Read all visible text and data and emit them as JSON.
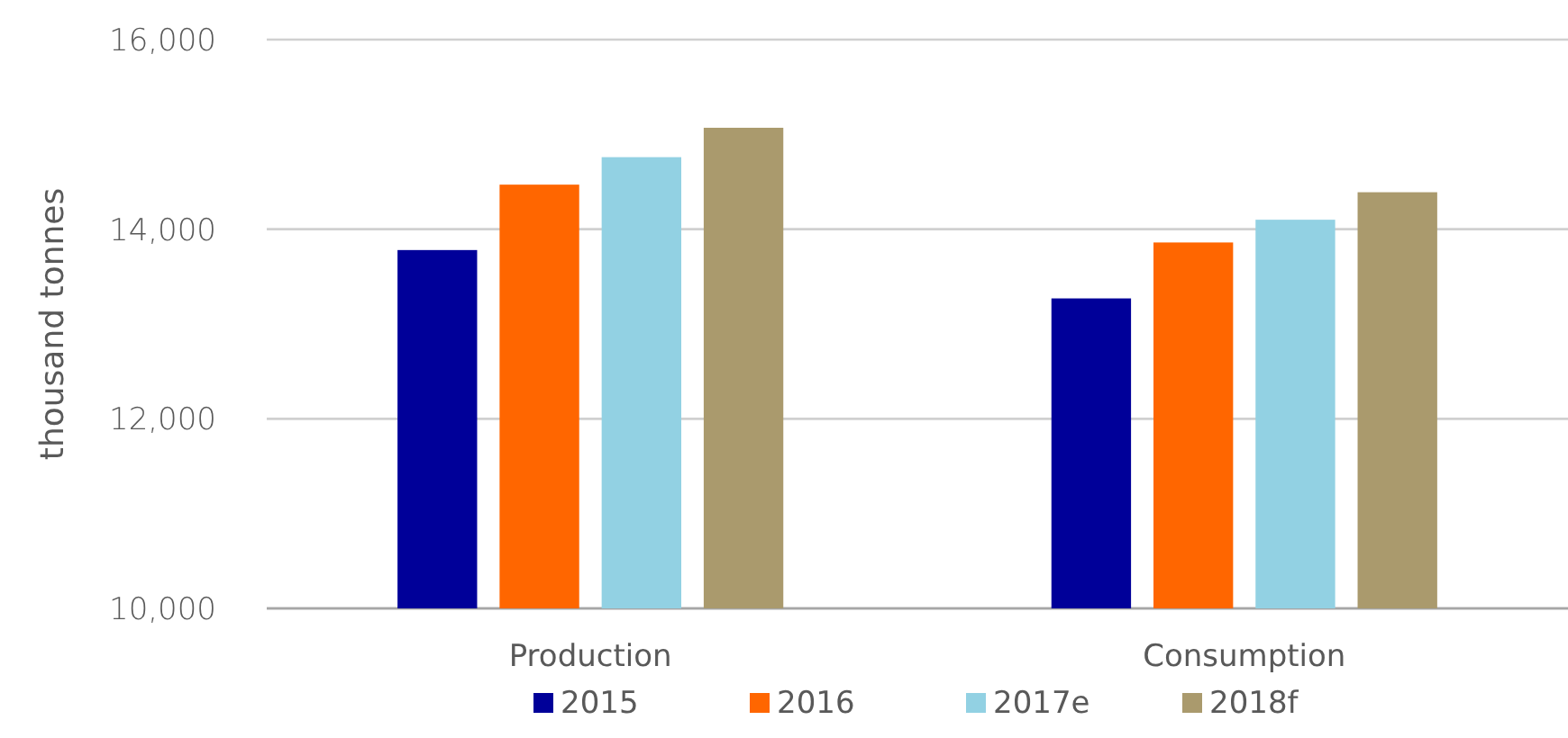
{
  "chart_data": {
    "type": "bar",
    "ylabel": "thousand tonnes",
    "categories": [
      "Production",
      "Consumption"
    ],
    "series": [
      {
        "name": "2015",
        "color": "#000099",
        "values": [
          13780,
          13270
        ]
      },
      {
        "name": "2016",
        "color": "#ff6600",
        "values": [
          14470,
          13860
        ]
      },
      {
        "name": "2017e",
        "color": "#92d1e3",
        "values": [
          14760,
          14100
        ]
      },
      {
        "name": "2018f",
        "color": "#aa9a6d",
        "values": [
          15070,
          14390
        ]
      }
    ],
    "ylim": [
      10000,
      16000
    ],
    "yticks": [
      {
        "value": 10000,
        "label": "10,000"
      },
      {
        "value": 12000,
        "label": "12,000"
      },
      {
        "value": 14000,
        "label": "14,000"
      },
      {
        "value": 16000,
        "label": "16,000"
      }
    ],
    "grid": "y",
    "legend": "bottom"
  }
}
